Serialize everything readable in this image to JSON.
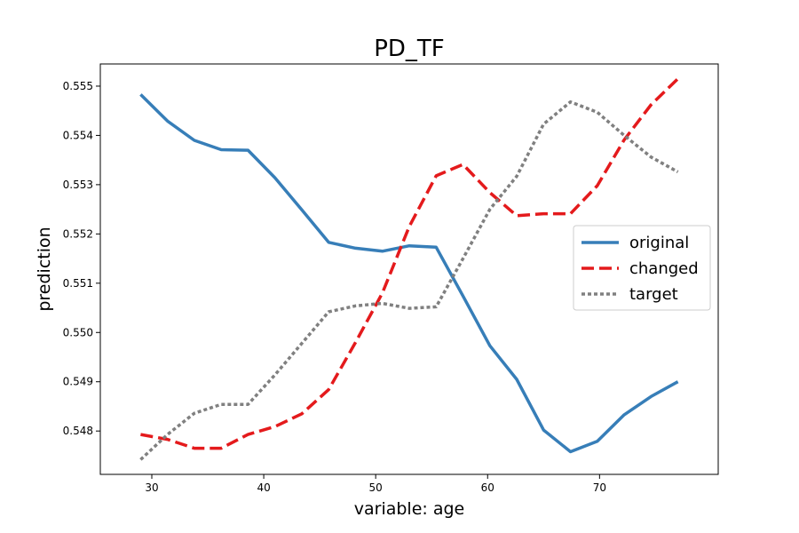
{
  "chart_data": {
    "type": "line",
    "title": "PD_TF",
    "xlabel": "variable: age",
    "ylabel": "prediction",
    "xlim": [
      25.4,
      80.6
    ],
    "ylim": [
      0.54712,
      0.55545
    ],
    "xticks": [
      30,
      40,
      50,
      60,
      70
    ],
    "yticks": [
      0.548,
      0.549,
      0.55,
      0.551,
      0.552,
      0.553,
      0.554,
      0.555
    ],
    "ytick_labels": [
      "0.548",
      "0.549",
      "0.550",
      "0.551",
      "0.552",
      "0.553",
      "0.554",
      "0.555"
    ],
    "grid": false,
    "legend_position": "center-right",
    "x": [
      29,
      31.4,
      33.8,
      36.2,
      38.6,
      41,
      43.4,
      45.8,
      48.2,
      50.6,
      53,
      55.4,
      57.8,
      60.2,
      62.6,
      65,
      67.4,
      69.8,
      72.2,
      74.6,
      77
    ],
    "series": [
      {
        "name": "original",
        "color": "#377eb8",
        "style": "solid",
        "values": [
          0.55483,
          0.55429,
          0.5539,
          0.55371,
          0.5537,
          0.55314,
          0.55249,
          0.55183,
          0.55171,
          0.55165,
          0.55176,
          0.55173,
          0.55074,
          0.54973,
          0.54905,
          0.54802,
          0.54758,
          0.54779,
          0.54833,
          0.5487,
          0.549
        ]
      },
      {
        "name": "changed",
        "color": "#e41a1c",
        "style": "dashed",
        "values": [
          0.54793,
          0.54783,
          0.54765,
          0.54765,
          0.54793,
          0.54809,
          0.54835,
          0.54884,
          0.5498,
          0.5508,
          0.55215,
          0.55318,
          0.55341,
          0.55284,
          0.55237,
          0.55241,
          0.55241,
          0.55298,
          0.55391,
          0.55462,
          0.55515
        ]
      },
      {
        "name": "target",
        "color": "#808080",
        "style": "dotted",
        "values": [
          0.54742,
          0.54793,
          0.54836,
          0.54854,
          0.54854,
          0.54914,
          0.54978,
          0.55042,
          0.55054,
          0.55059,
          0.55049,
          0.55052,
          0.5515,
          0.5525,
          0.55317,
          0.55423,
          0.55468,
          0.55447,
          0.554,
          0.55356,
          0.55326
        ]
      }
    ]
  }
}
